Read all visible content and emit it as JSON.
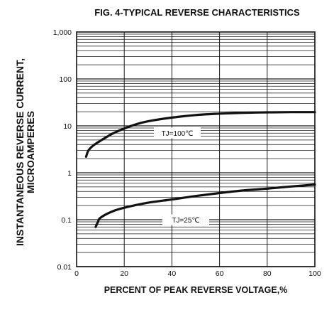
{
  "chart_data": {
    "type": "line",
    "title": "FIG. 4-TYPICAL REVERSE CHARACTERISTICS",
    "xlabel": "PERCENT OF PEAK REVERSE VOLTAGE,%",
    "ylabel_lines": [
      "INSTANTANEOUS REVERSE CURRENT,",
      "MICROAMPERES"
    ],
    "x_scale": "linear",
    "y_scale": "log",
    "xlim": [
      0,
      100
    ],
    "ylim": [
      0.01,
      1000
    ],
    "x_ticks": [
      0,
      20,
      40,
      60,
      80,
      100
    ],
    "x_tick_labels": [
      "0",
      "20",
      "40",
      "60",
      "80",
      "100"
    ],
    "y_ticks": [
      0.01,
      0.1,
      1,
      10,
      100,
      1000
    ],
    "y_tick_labels": [
      "0.01",
      "0.1",
      "1",
      "10",
      "100",
      "1,000"
    ],
    "grid": true,
    "series": [
      {
        "name": "TJ=100℃",
        "points": [
          [
            4,
            2.2
          ],
          [
            5,
            3.0
          ],
          [
            7,
            3.8
          ],
          [
            10,
            4.8
          ],
          [
            15,
            6.8
          ],
          [
            20,
            8.8
          ],
          [
            25,
            10.8
          ],
          [
            30,
            12.5
          ],
          [
            40,
            15.0
          ],
          [
            50,
            17.0
          ],
          [
            60,
            18.2
          ],
          [
            70,
            19.0
          ],
          [
            80,
            19.4
          ],
          [
            90,
            19.6
          ],
          [
            100,
            19.6
          ]
        ]
      },
      {
        "name": "TJ=25℃",
        "points": [
          [
            8,
            0.07
          ],
          [
            9,
            0.09
          ],
          [
            10,
            0.11
          ],
          [
            15,
            0.15
          ],
          [
            20,
            0.18
          ],
          [
            30,
            0.23
          ],
          [
            40,
            0.27
          ],
          [
            50,
            0.32
          ],
          [
            60,
            0.37
          ],
          [
            70,
            0.42
          ],
          [
            80,
            0.46
          ],
          [
            90,
            0.51
          ],
          [
            100,
            0.56
          ]
        ]
      }
    ]
  }
}
